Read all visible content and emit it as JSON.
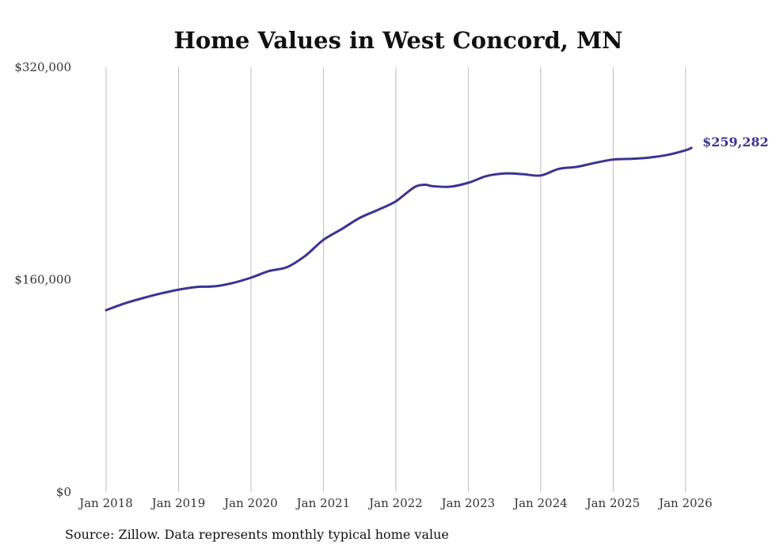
{
  "chart_data": {
    "type": "line",
    "title": "Home Values in West Concord, MN",
    "xlabel": "",
    "ylabel": "",
    "x_ticks": [
      {
        "label": "Jan 2018",
        "value": 2018.0
      },
      {
        "label": "Jan 2019",
        "value": 2019.0
      },
      {
        "label": "Jan 2020",
        "value": 2020.0
      },
      {
        "label": "Jan 2021",
        "value": 2021.0
      },
      {
        "label": "Jan 2022",
        "value": 2022.0
      },
      {
        "label": "Jan 2023",
        "value": 2023.0
      },
      {
        "label": "Jan 2024",
        "value": 2024.0
      },
      {
        "label": "Jan 2025",
        "value": 2025.0
      },
      {
        "label": "Jan 2026",
        "value": 2026.0
      }
    ],
    "y_ticks": [
      {
        "label": "$0",
        "value": 0
      },
      {
        "label": "$160,000",
        "value": 160000
      },
      {
        "label": "$320,000",
        "value": 320000
      }
    ],
    "xlim": [
      2018.0,
      2026.1
    ],
    "ylim": [
      0,
      320000
    ],
    "grid": "vertical",
    "series": [
      {
        "name": "Typical home value",
        "color": "#3b3492",
        "x": [
          2018.0,
          2018.25,
          2018.5,
          2018.75,
          2019.0,
          2019.25,
          2019.5,
          2019.75,
          2020.0,
          2020.25,
          2020.5,
          2020.75,
          2021.0,
          2021.25,
          2021.5,
          2021.75,
          2022.0,
          2022.25,
          2022.4,
          2022.5,
          2022.75,
          2023.0,
          2023.25,
          2023.5,
          2023.75,
          2024.0,
          2024.25,
          2024.5,
          2024.75,
          2025.0,
          2025.25,
          2025.5,
          2025.75,
          2026.0,
          2026.08
        ],
        "values": [
          137000,
          142000,
          146000,
          149500,
          152500,
          154500,
          155000,
          157500,
          161500,
          166500,
          169500,
          178000,
          190000,
          198000,
          206500,
          212500,
          219000,
          229500,
          231500,
          230500,
          230000,
          233000,
          238000,
          240000,
          239500,
          238500,
          243500,
          245000,
          248000,
          250500,
          251000,
          252000,
          254000,
          257500,
          259282
        ]
      }
    ],
    "end_value_label": "$259,282"
  },
  "footer": {
    "source": "Source: Zillow. Data represents monthly typical home value"
  }
}
